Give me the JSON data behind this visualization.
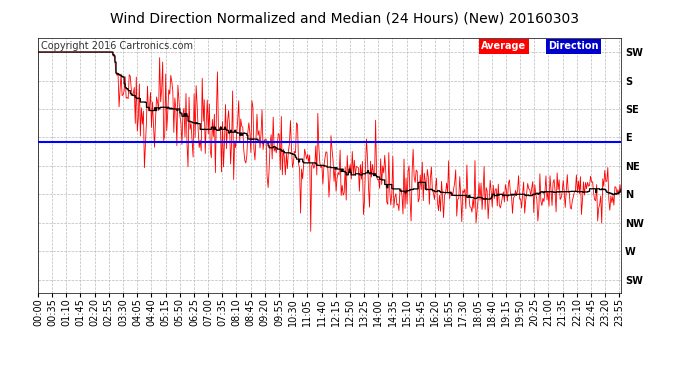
{
  "title": "Wind Direction Normalized and Median (24 Hours) (New) 20160303",
  "copyright": "Copyright 2016 Cartronics.com",
  "background_color": "#ffffff",
  "plot_bg_color": "#ffffff",
  "ytick_labels": [
    "SW",
    "S",
    "SE",
    "E",
    "NE",
    "N",
    "NW",
    "W",
    "SW"
  ],
  "ytick_values": [
    225,
    180,
    135,
    90,
    45,
    0,
    -45,
    -90,
    -135
  ],
  "ylim": [
    -155,
    248
  ],
  "avg_dir": 83,
  "median_line_color": "#000000",
  "avg_line_color": "#0000ff",
  "wind_line_color": "#ff0000",
  "title_fontsize": 10,
  "copyright_fontsize": 7,
  "tick_fontsize": 7,
  "grid_color": "#bbbbbb",
  "grid_style": "--",
  "tick_interval_min": 35,
  "xlim_min": 0,
  "xlim_max": 1439
}
